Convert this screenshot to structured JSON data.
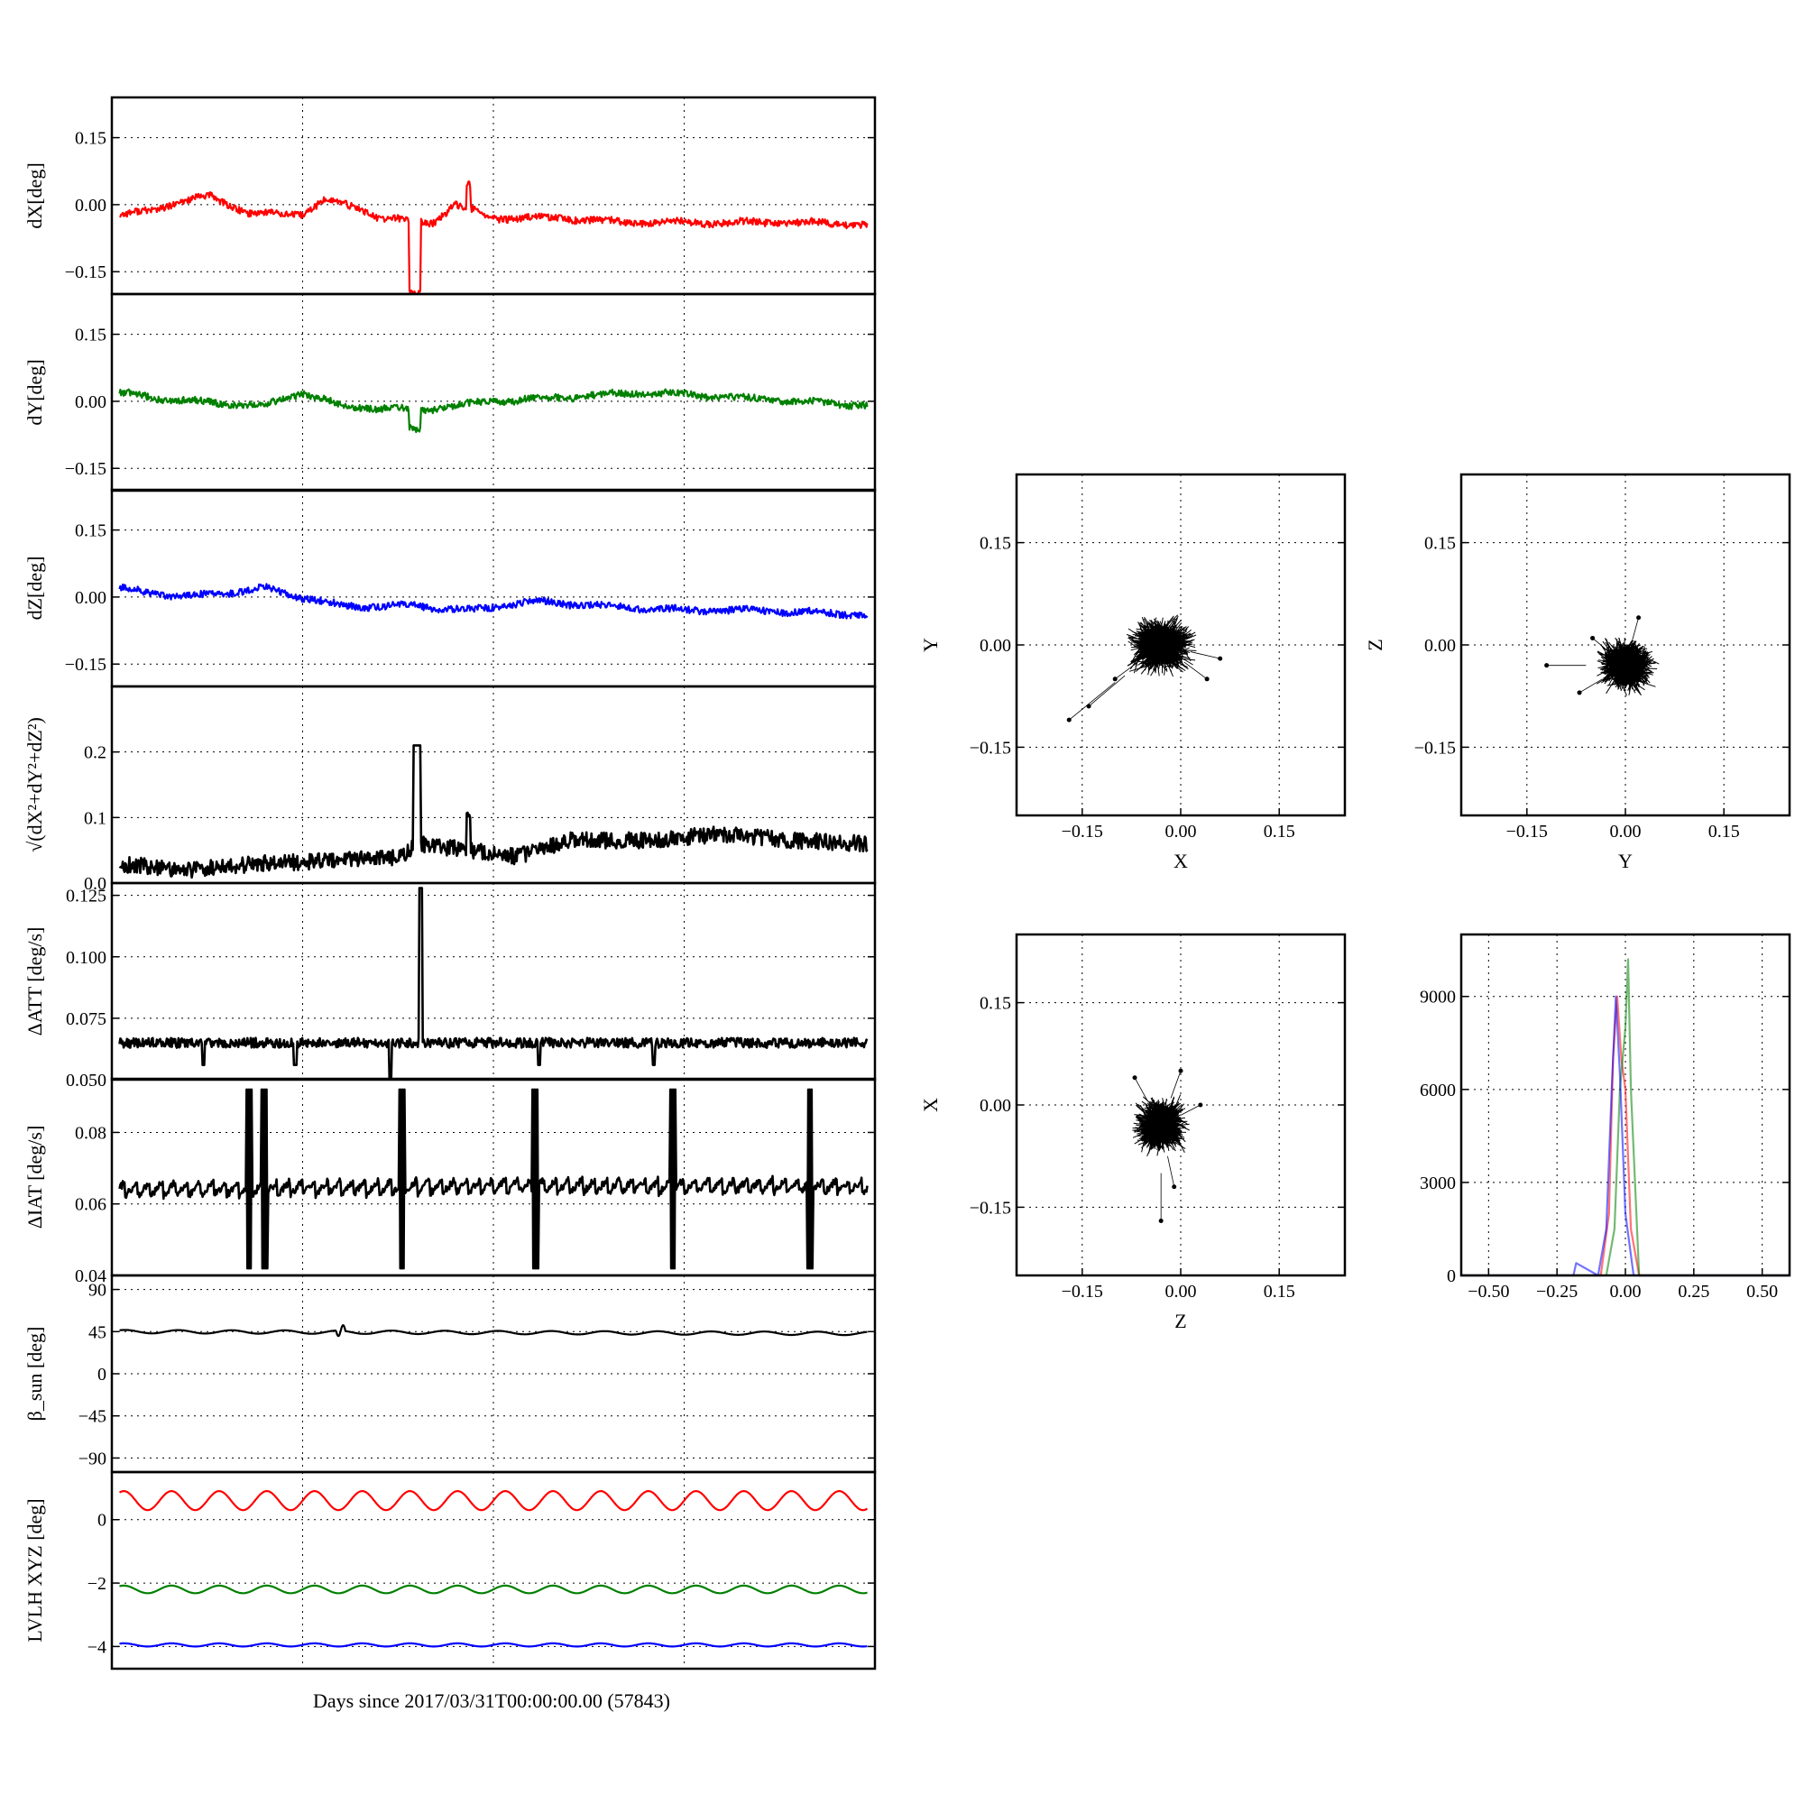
{
  "figure": {
    "xlabel": "Days since 2017/03/31T00:00:00.00 (57843)"
  },
  "colors": {
    "x": "#ff0000",
    "y": "#008000",
    "z": "#0000ff",
    "k": "#000000"
  },
  "chart_data": [
    {
      "type": "line",
      "id": "dx",
      "ylabel": "dX[deg]",
      "ylim": [
        -0.2,
        0.24
      ],
      "yticks": [
        -0.15,
        0.0,
        0.15
      ],
      "ytick_labels": [
        "−0.15",
        "0.00",
        "0.15"
      ],
      "grid": true,
      "series": [
        {
          "color": "#ff0000",
          "x": [
            0,
            0.13,
            0.18,
            0.25,
            0.28,
            0.33,
            0.35,
            0.42,
            0.45,
            0.5,
            0.55,
            0.59,
            0.63,
            0.67,
            0.7,
            0.8,
            0.9,
            1.0
          ],
          "y": [
            -0.03,
            0.02,
            -0.02,
            -0.02,
            0.01,
            -0.01,
            -0.03,
            -0.04,
            0.0,
            -0.03,
            -0.03,
            -0.03,
            -0.035,
            -0.04,
            -0.04,
            -0.04,
            -0.04,
            -0.045
          ]
        }
      ]
    },
    {
      "type": "line",
      "id": "dy",
      "ylabel": "dY[deg]",
      "ylim": [
        -0.2,
        0.24
      ],
      "yticks": [
        -0.15,
        0.0,
        0.15
      ],
      "ytick_labels": [
        "−0.15",
        "0.00",
        "0.15"
      ],
      "grid": true,
      "series": [
        {
          "color": "#008000",
          "x": [
            0,
            0.1,
            0.2,
            0.25,
            0.3,
            0.4,
            0.5,
            0.6,
            0.7,
            0.8,
            0.9,
            1.0
          ],
          "y": [
            0.02,
            0.0,
            -0.01,
            0.02,
            -0.01,
            -0.02,
            0.0,
            0.01,
            0.02,
            0.01,
            0.0,
            -0.01
          ]
        }
      ]
    },
    {
      "type": "line",
      "id": "dz",
      "ylabel": "dZ[deg]",
      "ylim": [
        -0.2,
        0.24
      ],
      "yticks": [
        -0.15,
        0.0,
        0.15
      ],
      "ytick_labels": [
        "−0.15",
        "0.00",
        "0.15"
      ],
      "grid": true,
      "series": [
        {
          "color": "#0000ff",
          "x": [
            0,
            0.1,
            0.2,
            0.3,
            0.4,
            0.47,
            0.55,
            0.65,
            0.75,
            0.85,
            1.0
          ],
          "y": [
            0.02,
            0.0,
            0.02,
            -0.02,
            -0.02,
            -0.03,
            -0.01,
            -0.02,
            -0.03,
            -0.03,
            -0.04
          ]
        }
      ]
    },
    {
      "type": "line",
      "id": "dr",
      "ylabel": "√(dX²+dY²+dZ²)",
      "ylim": [
        0.0,
        0.3
      ],
      "yticks": [
        0.0,
        0.1,
        0.2
      ],
      "ytick_labels": [
        "0.0",
        "0.1",
        "0.2"
      ],
      "grid": true,
      "series": [
        {
          "color": "#000000",
          "x": [
            0,
            0.1,
            0.2,
            0.3,
            0.38,
            0.4,
            0.47,
            0.53,
            0.6,
            0.7,
            0.8,
            0.9,
            1.0
          ],
          "y": [
            0.03,
            0.02,
            0.03,
            0.035,
            0.04,
            0.06,
            0.05,
            0.04,
            0.065,
            0.065,
            0.075,
            0.065,
            0.06
          ]
        }
      ]
    },
    {
      "type": "line",
      "id": "datt",
      "ylabel": "ΔATT [deg/s]",
      "ylim": [
        0.05,
        0.13
      ],
      "yticks": [
        0.05,
        0.075,
        0.1,
        0.125
      ],
      "ytick_labels": [
        "0.050",
        "0.075",
        "0.100",
        "0.125"
      ],
      "grid": true,
      "series": [
        {
          "color": "#000000",
          "x": [
            0,
            0.5,
            1.0
          ],
          "y": [
            0.065,
            0.065,
            0.065
          ]
        }
      ]
    },
    {
      "type": "line",
      "id": "diat",
      "ylabel": "ΔIAT [deg/s]",
      "ylim": [
        0.04,
        0.095
      ],
      "yticks": [
        0.04,
        0.06,
        0.08
      ],
      "ytick_labels": [
        "0.04",
        "0.06",
        "0.08"
      ],
      "grid": true,
      "series": [
        {
          "color": "#000000",
          "x": [
            0,
            0.5,
            1.0
          ],
          "y": [
            0.064,
            0.065,
            0.065
          ]
        }
      ]
    },
    {
      "type": "line",
      "id": "beta",
      "ylabel": "β_sun [deg]",
      "ylim": [
        -105,
        105
      ],
      "yticks": [
        -90,
        -45,
        0,
        45,
        90
      ],
      "ytick_labels": [
        "−90",
        "−45",
        "0",
        "45",
        "90"
      ],
      "grid": true,
      "series": [
        {
          "color": "#000000",
          "x": [
            0,
            0.5,
            1.0
          ],
          "y": [
            45,
            44,
            43
          ]
        }
      ]
    },
    {
      "type": "line",
      "id": "lvlh",
      "ylabel": "LVLH XYZ [deg]",
      "ylim": [
        -4.7,
        1.5
      ],
      "yticks": [
        -4,
        -2,
        0
      ],
      "ytick_labels": [
        "−4",
        "−2",
        "0"
      ],
      "grid": true,
      "series": [
        {
          "color": "#ff0000",
          "x": [
            0,
            0.5,
            1.0
          ],
          "y": [
            0.6,
            0.6,
            0.6
          ]
        },
        {
          "color": "#008000",
          "x": [
            0,
            0.5,
            1.0
          ],
          "y": [
            -2.2,
            -2.2,
            -2.2
          ]
        },
        {
          "color": "#0000ff",
          "x": [
            0,
            0.5,
            1.0
          ],
          "y": [
            -3.95,
            -3.95,
            -3.95
          ]
        }
      ]
    },
    {
      "type": "scatter",
      "id": "xy",
      "xlabel": "X",
      "ylabel": "Y",
      "xlim": [
        -0.25,
        0.25
      ],
      "ylim": [
        -0.25,
        0.25
      ],
      "xticks": [
        -0.15,
        0.0,
        0.15
      ],
      "yticks": [
        -0.15,
        0.0,
        0.15
      ],
      "xtick_labels": [
        "−0.15",
        "0.00",
        "0.15"
      ],
      "ytick_labels": [
        "−0.15",
        "0.00",
        "0.15"
      ],
      "grid": true,
      "center": [
        -0.03,
        0.0
      ],
      "spread": [
        0.025,
        0.022
      ],
      "outliers": [
        [
          -0.17,
          -0.11
        ],
        [
          -0.14,
          -0.09
        ],
        [
          -0.1,
          -0.05
        ],
        [
          0.06,
          -0.02
        ],
        [
          0.04,
          -0.05
        ]
      ]
    },
    {
      "type": "scatter",
      "id": "yz",
      "xlabel": "Y",
      "ylabel": "Z",
      "xlim": [
        -0.25,
        0.25
      ],
      "ylim": [
        -0.25,
        0.25
      ],
      "xticks": [
        -0.15,
        0.0,
        0.15
      ],
      "yticks": [
        -0.15,
        0.0,
        0.15
      ],
      "xtick_labels": [
        "−0.15",
        "0.00",
        "0.15"
      ],
      "ytick_labels": [
        "−0.15",
        "0.00",
        "0.15"
      ],
      "grid": true,
      "center": [
        0.0,
        -0.03
      ],
      "spread": [
        0.022,
        0.02
      ],
      "outliers": [
        [
          -0.12,
          -0.03
        ],
        [
          -0.07,
          -0.07
        ],
        [
          -0.05,
          0.01
        ],
        [
          0.02,
          0.04
        ]
      ]
    },
    {
      "type": "scatter",
      "id": "zx",
      "xlabel": "Z",
      "ylabel": "X",
      "xlim": [
        -0.25,
        0.25
      ],
      "ylim": [
        -0.25,
        0.25
      ],
      "xticks": [
        -0.15,
        0.0,
        0.15
      ],
      "yticks": [
        -0.15,
        0.0,
        0.15
      ],
      "xtick_labels": [
        "−0.15",
        "0.00",
        "0.15"
      ],
      "ytick_labels": [
        "−0.15",
        "0.00",
        "0.15"
      ],
      "grid": true,
      "center": [
        -0.03,
        -0.03
      ],
      "spread": [
        0.02,
        0.02
      ],
      "outliers": [
        [
          -0.03,
          -0.17
        ],
        [
          -0.01,
          -0.12
        ],
        [
          -0.07,
          0.04
        ],
        [
          0.0,
          0.05
        ],
        [
          0.03,
          0.0
        ]
      ]
    },
    {
      "type": "line",
      "id": "hist",
      "xlim": [
        -0.6,
        0.6
      ],
      "ylim": [
        0,
        11000
      ],
      "xticks": [
        -0.5,
        -0.25,
        0.0,
        0.25,
        0.5
      ],
      "yticks": [
        0,
        3000,
        6000,
        9000
      ],
      "xtick_labels": [
        "−0.50",
        "−0.25",
        "0.00",
        "0.25",
        "0.50"
      ],
      "ytick_labels": [
        "0",
        "3000",
        "6000",
        "9000"
      ],
      "grid": true,
      "series": [
        {
          "color": "#ff0000",
          "x": [
            -0.6,
            -0.09,
            -0.06,
            -0.045,
            -0.03,
            -0.015,
            0.0,
            0.02,
            0.05,
            0.6
          ],
          "y": [
            0,
            0,
            2000,
            7000,
            9000,
            7000,
            6000,
            1500,
            0,
            0
          ]
        },
        {
          "color": "#008000",
          "x": [
            -0.6,
            -0.07,
            -0.04,
            -0.02,
            0.0,
            0.01,
            0.02,
            0.05,
            0.6
          ],
          "y": [
            0,
            0,
            1500,
            6000,
            8000,
            10200,
            6000,
            0,
            0
          ]
        },
        {
          "color": "#0000ff",
          "x": [
            -0.6,
            -0.19,
            -0.18,
            -0.1,
            -0.07,
            -0.05,
            -0.035,
            -0.02,
            0.0,
            0.03,
            0.6
          ],
          "y": [
            0,
            0,
            400,
            0,
            1500,
            6000,
            9000,
            6500,
            2000,
            0,
            0
          ]
        }
      ]
    }
  ]
}
